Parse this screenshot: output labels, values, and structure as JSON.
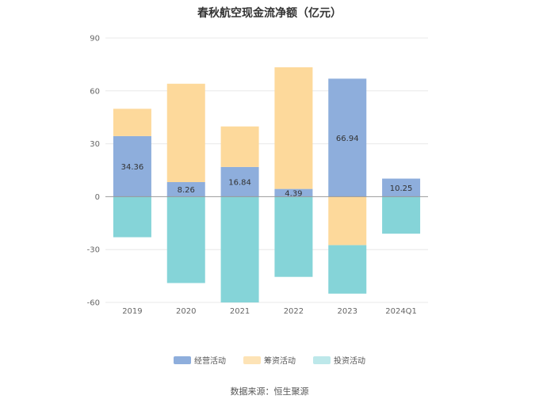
{
  "chart_data": {
    "type": "bar",
    "stacked": true,
    "title": "春秋航空现金流净额（亿元）",
    "categories": [
      "2019",
      "2020",
      "2021",
      "2022",
      "2023",
      "2024Q1"
    ],
    "series": [
      {
        "name": "经营活动",
        "color": "#8eaedc",
        "values": [
          34.36,
          8.26,
          16.84,
          4.39,
          66.94,
          10.25
        ]
      },
      {
        "name": "筹资活动",
        "color": "#fdd99b",
        "values": [
          15.5,
          55.8,
          23.0,
          69.0,
          -27.5,
          0
        ]
      },
      {
        "name": "投资活动",
        "color": "#85d4d8",
        "values": [
          -23.0,
          -49.0,
          -60.0,
          -45.5,
          -27.5,
          -21.0
        ]
      }
    ],
    "data_labels": [
      "34.36",
      "8.26",
      "16.84",
      "4.39",
      "66.94",
      "10.25"
    ],
    "y_ticks": [
      "90",
      "60",
      "30",
      "0",
      "-30",
      "-60"
    ],
    "ylim": [
      -60,
      90
    ],
    "grid": true,
    "legend_position": "bottom",
    "legend_swatch_colors": [
      "#8eaedc",
      "#fde3b6",
      "#bde8ea"
    ]
  },
  "source_note": "数据来源：恒生聚源"
}
